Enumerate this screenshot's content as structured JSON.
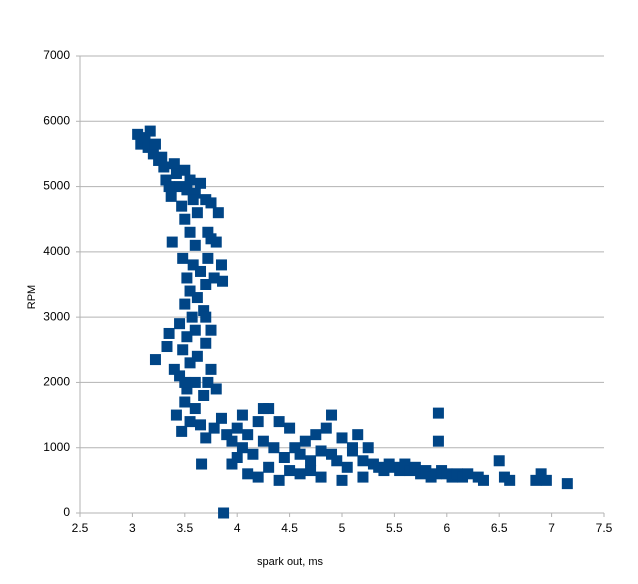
{
  "chart_data": {
    "type": "scatter",
    "x_label": "spark out, ms",
    "y_label": "RPM",
    "color": "#004586",
    "grid": true,
    "xlim": [
      2.5,
      7.5
    ],
    "xticks": [
      2.5,
      3,
      3.5,
      4,
      4.5,
      5,
      5.5,
      6,
      6.5,
      7,
      7.5
    ],
    "ylim": [
      0,
      7000
    ],
    "yticks": [
      0,
      1000,
      2000,
      3000,
      4000,
      5000,
      6000,
      7000
    ],
    "x": [
      3.05,
      3.08,
      3.12,
      3.15,
      3.17,
      3.2,
      3.22,
      3.25,
      3.28,
      3.3,
      3.32,
      3.35,
      3.37,
      3.4,
      3.42,
      3.45,
      3.47,
      3.5,
      3.52,
      3.55,
      3.6,
      3.65,
      3.7,
      3.75,
      3.82,
      3.72,
      3.8,
      3.5,
      3.55,
      3.6,
      3.48,
      3.58,
      3.65,
      3.52,
      3.7,
      3.55,
      3.62,
      3.5,
      3.68,
      3.57,
      3.45,
      3.6,
      3.52,
      3.7,
      3.48,
      3.62,
      3.55,
      3.75,
      3.45,
      3.6,
      3.52,
      3.68,
      3.5,
      3.6,
      3.72,
      3.78,
      3.85,
      3.86,
      3.38,
      3.35,
      3.33,
      3.22,
      3.4,
      3.42,
      3.47,
      3.55,
      3.65,
      3.7,
      3.78,
      3.62,
      3.75,
      3.7,
      3.75,
      3.72,
      3.8,
      3.58,
      3.5,
      3.85,
      3.9,
      3.95,
      4.0,
      4.05,
      4.1,
      4.15,
      4.2,
      4.25,
      4.3,
      4.35,
      4.4,
      4.45,
      4.5,
      4.55,
      4.6,
      4.65,
      4.7,
      4.75,
      4.8,
      4.85,
      4.9,
      4.95,
      5.0,
      5.05,
      5.1,
      5.15,
      5.2,
      5.25,
      5.3,
      5.35,
      5.4,
      5.45,
      5.5,
      5.55,
      5.6,
      5.65,
      5.7,
      5.75,
      5.8,
      5.85,
      5.9,
      5.95,
      6.0,
      6.05,
      6.1,
      6.15,
      6.2,
      6.3,
      6.35,
      6.5,
      6.55,
      6.6,
      6.85,
      6.9,
      6.95,
      7.15,
      5.92,
      5.92,
      3.66,
      3.95,
      4.1,
      4.2,
      4.4,
      4.6,
      4.8,
      5.0,
      3.87,
      4.0,
      4.3,
      4.5,
      4.7,
      5.2,
      4.05,
      4.25,
      5.1,
      4.9
    ],
    "values": [
      5800,
      5650,
      5750,
      5600,
      5850,
      5500,
      5650,
      5400,
      5450,
      5300,
      5100,
      5000,
      4850,
      5350,
      5200,
      5000,
      4700,
      5250,
      4950,
      5100,
      4900,
      5050,
      4800,
      4750,
      4600,
      4300,
      4150,
      4500,
      4300,
      4100,
      3900,
      3800,
      3700,
      3600,
      3500,
      3400,
      3300,
      3200,
      3100,
      3000,
      2900,
      2800,
      2700,
      2600,
      2500,
      2400,
      2300,
      2200,
      2100,
      2000,
      1900,
      1800,
      1700,
      1600,
      3900,
      3600,
      3800,
      3550,
      4150,
      2750,
      2550,
      2350,
      2200,
      1500,
      1250,
      1400,
      1350,
      1150,
      1300,
      4600,
      4200,
      3000,
      2800,
      2000,
      1900,
      4800,
      2000,
      1450,
      1200,
      1100,
      1300,
      1000,
      1200,
      900,
      1400,
      1100,
      1600,
      1000,
      1400,
      850,
      1300,
      1000,
      900,
      1100,
      800,
      1200,
      950,
      1300,
      1500,
      800,
      1150,
      700,
      950,
      1200,
      800,
      1000,
      750,
      700,
      650,
      750,
      700,
      650,
      750,
      650,
      700,
      600,
      650,
      550,
      600,
      650,
      600,
      550,
      600,
      550,
      600,
      550,
      500,
      800,
      550,
      500,
      500,
      600,
      500,
      450,
      1530,
      1100,
      750,
      750,
      600,
      550,
      500,
      600,
      550,
      500,
      0,
      850,
      700,
      650,
      650,
      550,
      1500,
      1600,
      1000,
      900
    ]
  }
}
